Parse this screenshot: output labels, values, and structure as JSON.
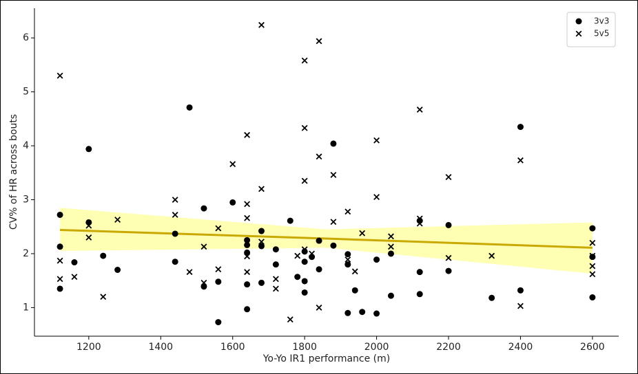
{
  "chart_data": {
    "type": "scatter",
    "x_label": "Yo-Yo IR1 performance (m)",
    "y_label": "CV% of HR across bouts",
    "xlim": [
      1049,
      2673
    ],
    "ylim": [
      0.47,
      6.55
    ],
    "xticks": [
      1200,
      1400,
      1600,
      1800,
      2000,
      2200,
      2400,
      2600
    ],
    "yticks": [
      1,
      2,
      3,
      4,
      5,
      6
    ],
    "legend": "upper right",
    "series": [
      {
        "name": "3v3",
        "color": "#000000",
        "marker": "o",
        "x": [
          1120,
          1120,
          1120,
          1160,
          1200,
          1200,
          1240,
          1280,
          1440,
          1440,
          1480,
          1520,
          1520,
          1560,
          1560,
          1600,
          1640,
          1640,
          1640,
          1640,
          1640,
          1680,
          1680,
          1680,
          1720,
          1720,
          1760,
          1780,
          1800,
          1800,
          1800,
          1800,
          1820,
          1840,
          1840,
          1880,
          1880,
          1920,
          1920,
          1920,
          1940,
          1960,
          2000,
          2000,
          2040,
          2040,
          2120,
          2120,
          2120,
          2200,
          2200,
          2320,
          2400,
          2400,
          2600,
          2600,
          2600
        ],
        "values": [
          2.72,
          2.13,
          1.35,
          1.84,
          3.94,
          2.58,
          1.96,
          1.7,
          2.37,
          1.85,
          4.71,
          2.84,
          1.39,
          0.73,
          1.48,
          2.95,
          2.25,
          2.16,
          2.02,
          1.43,
          0.97,
          2.42,
          2.14,
          1.46,
          2.08,
          1.8,
          2.61,
          1.57,
          2.04,
          1.85,
          1.49,
          1.28,
          1.94,
          2.24,
          1.71,
          4.04,
          2.15,
          1.99,
          1.8,
          0.9,
          1.32,
          0.92,
          1.89,
          0.89,
          2.0,
          1.22,
          2.61,
          1.66,
          1.25,
          2.53,
          1.68,
          1.18,
          4.35,
          1.32,
          2.47,
          1.94,
          1.19
        ]
      },
      {
        "name": "5v5",
        "color": "#000000",
        "marker": "x",
        "x": [
          1120,
          1120,
          1120,
          1160,
          1200,
          1200,
          1240,
          1280,
          1440,
          1440,
          1480,
          1520,
          1520,
          1560,
          1560,
          1600,
          1640,
          1640,
          1640,
          1640,
          1640,
          1680,
          1680,
          1680,
          1720,
          1720,
          1760,
          1780,
          1800,
          1800,
          1800,
          1800,
          1820,
          1840,
          1840,
          1840,
          1880,
          1880,
          1920,
          1920,
          1940,
          1960,
          2000,
          2000,
          2040,
          2040,
          2120,
          2120,
          2120,
          2200,
          2200,
          2320,
          2400,
          2400,
          2600,
          2600,
          2600,
          2600
        ],
        "values": [
          5.3,
          1.87,
          1.53,
          1.57,
          2.52,
          2.3,
          1.2,
          2.63,
          3.0,
          2.72,
          1.66,
          2.13,
          1.46,
          2.47,
          1.71,
          3.66,
          4.2,
          2.92,
          2.66,
          1.95,
          1.66,
          6.24,
          3.2,
          2.22,
          1.53,
          1.35,
          0.78,
          1.96,
          5.58,
          4.33,
          3.35,
          2.08,
          2.0,
          5.94,
          3.8,
          1.0,
          3.46,
          2.59,
          2.78,
          1.89,
          1.67,
          2.38,
          4.1,
          3.05,
          2.32,
          2.13,
          4.67,
          2.65,
          2.56,
          3.42,
          1.92,
          1.96,
          3.73,
          1.03,
          2.2,
          1.96,
          1.77,
          1.62
        ]
      }
    ],
    "regression": {
      "color": "#c9a800",
      "band_color": "#ffff99",
      "x": [
        1120,
        1860,
        2600
      ],
      "values": [
        2.44,
        2.28,
        2.11
      ],
      "upper": [
        2.85,
        2.45,
        2.58
      ],
      "lower": [
        2.05,
        2.11,
        1.63
      ]
    }
  }
}
